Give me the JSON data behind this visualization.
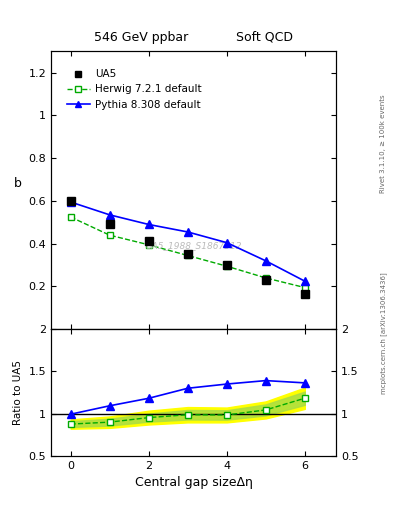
{
  "title_left": "546 GeV ppbar",
  "title_right": "Soft QCD",
  "ylabel_main": "b",
  "ylabel_ratio": "Ratio to UA5",
  "xlabel": "Central gap sizeΔη",
  "right_label_top": "Rivet 3.1.10, ≥ 100k events",
  "right_label_bot": "mcplots.cern.ch [arXiv:1306.3436]",
  "watermark": "UA5_1988_S1867512",
  "ua5_x": [
    0,
    1,
    2,
    3,
    4,
    5,
    6
  ],
  "ua5_y": [
    0.6,
    0.49,
    0.415,
    0.35,
    0.3,
    0.23,
    0.165
  ],
  "herwig_x": [
    0,
    1,
    2,
    3,
    4,
    5,
    6
  ],
  "herwig_y": [
    0.525,
    0.44,
    0.395,
    0.345,
    0.295,
    0.24,
    0.195
  ],
  "pythia_x": [
    0,
    1,
    2,
    3,
    4,
    5,
    6
  ],
  "pythia_y": [
    0.595,
    0.535,
    0.49,
    0.455,
    0.405,
    0.32,
    0.225
  ],
  "ratio_herwig_y": [
    0.875,
    0.898,
    0.952,
    0.986,
    0.983,
    1.043,
    1.182
  ],
  "ratio_herwig_lo": [
    0.84,
    0.857,
    0.904,
    0.929,
    0.927,
    0.978,
    1.103
  ],
  "ratio_herwig_hi": [
    0.91,
    0.939,
    1.0,
    1.043,
    1.039,
    1.109,
    1.261
  ],
  "ratio_herwig_lo2": [
    0.82,
    0.83,
    0.87,
    0.895,
    0.895,
    0.942,
    1.055
  ],
  "ratio_herwig_hi2": [
    0.93,
    0.966,
    1.034,
    1.077,
    1.071,
    1.144,
    1.309
  ],
  "ratio_pythia_y": [
    0.992,
    1.092,
    1.181,
    1.3,
    1.35,
    1.391,
    1.364
  ],
  "ua5_color": "black",
  "herwig_color": "#00aa00",
  "pythia_color": "blue",
  "main_ylim": [
    0.0,
    1.3
  ],
  "ratio_ylim": [
    0.5,
    2.0
  ],
  "xlim": [
    -0.5,
    6.8
  ],
  "legend_labels": [
    "UA5",
    "Herwig 7.2.1 default",
    "Pythia 8.308 default"
  ]
}
